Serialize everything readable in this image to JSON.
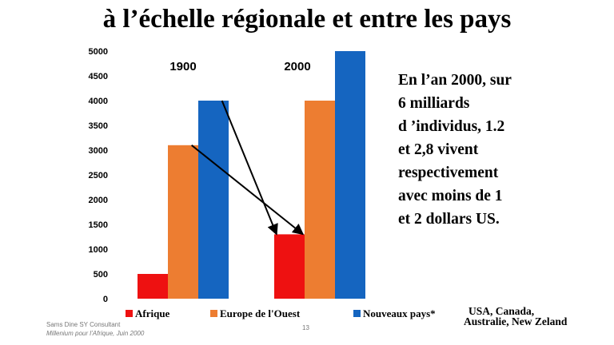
{
  "slide": {
    "title": "à l’échelle régionale et entre les pays",
    "side_text": [
      "En l’an 2000, sur",
      "6 milliards",
      "d ’individus, 1.2",
      "et 2,8 vivent",
      "respectivement",
      "avec moins de 1",
      "et 2 dollars US."
    ],
    "note_lines": [
      "USA, Canada,",
      "Australie, New Zeland"
    ],
    "footer_line1": "Sams Dine SY Consultant",
    "footer_line2": "Millenium pour l’Afrique, Juin 2000",
    "page_number": "13"
  },
  "chart_data": {
    "type": "bar",
    "categories": [
      "1900",
      "2000"
    ],
    "series": [
      {
        "name": "Afrique",
        "values": [
          500,
          1300
        ],
        "color": "#ee1111"
      },
      {
        "name": "Europe de l'Ouest",
        "values": [
          3100,
          4000
        ],
        "color": "#ed7d31"
      },
      {
        "name": "Nouveaux pays*",
        "values": [
          4000,
          5000
        ],
        "color": "#1565c0"
      }
    ],
    "ylim": [
      0,
      5000
    ],
    "yticks": [
      "0",
      "500",
      "1000",
      "1500",
      "2000",
      "2500",
      "3000",
      "3500",
      "4000",
      "4500",
      "5000"
    ],
    "grid": false,
    "legend_position": "bottom",
    "annotations": [
      {
        "from": {
          "category": "1900",
          "series": "Europe de l'Ouest",
          "value": 3100
        },
        "to": {
          "category": "2000",
          "series": "Afrique",
          "value": 1300
        }
      },
      {
        "from": {
          "category": "1900",
          "series": "Nouveaux pays*",
          "value": 4000
        },
        "to": {
          "category": "2000",
          "series": "Afrique",
          "value": 1300
        }
      }
    ]
  }
}
